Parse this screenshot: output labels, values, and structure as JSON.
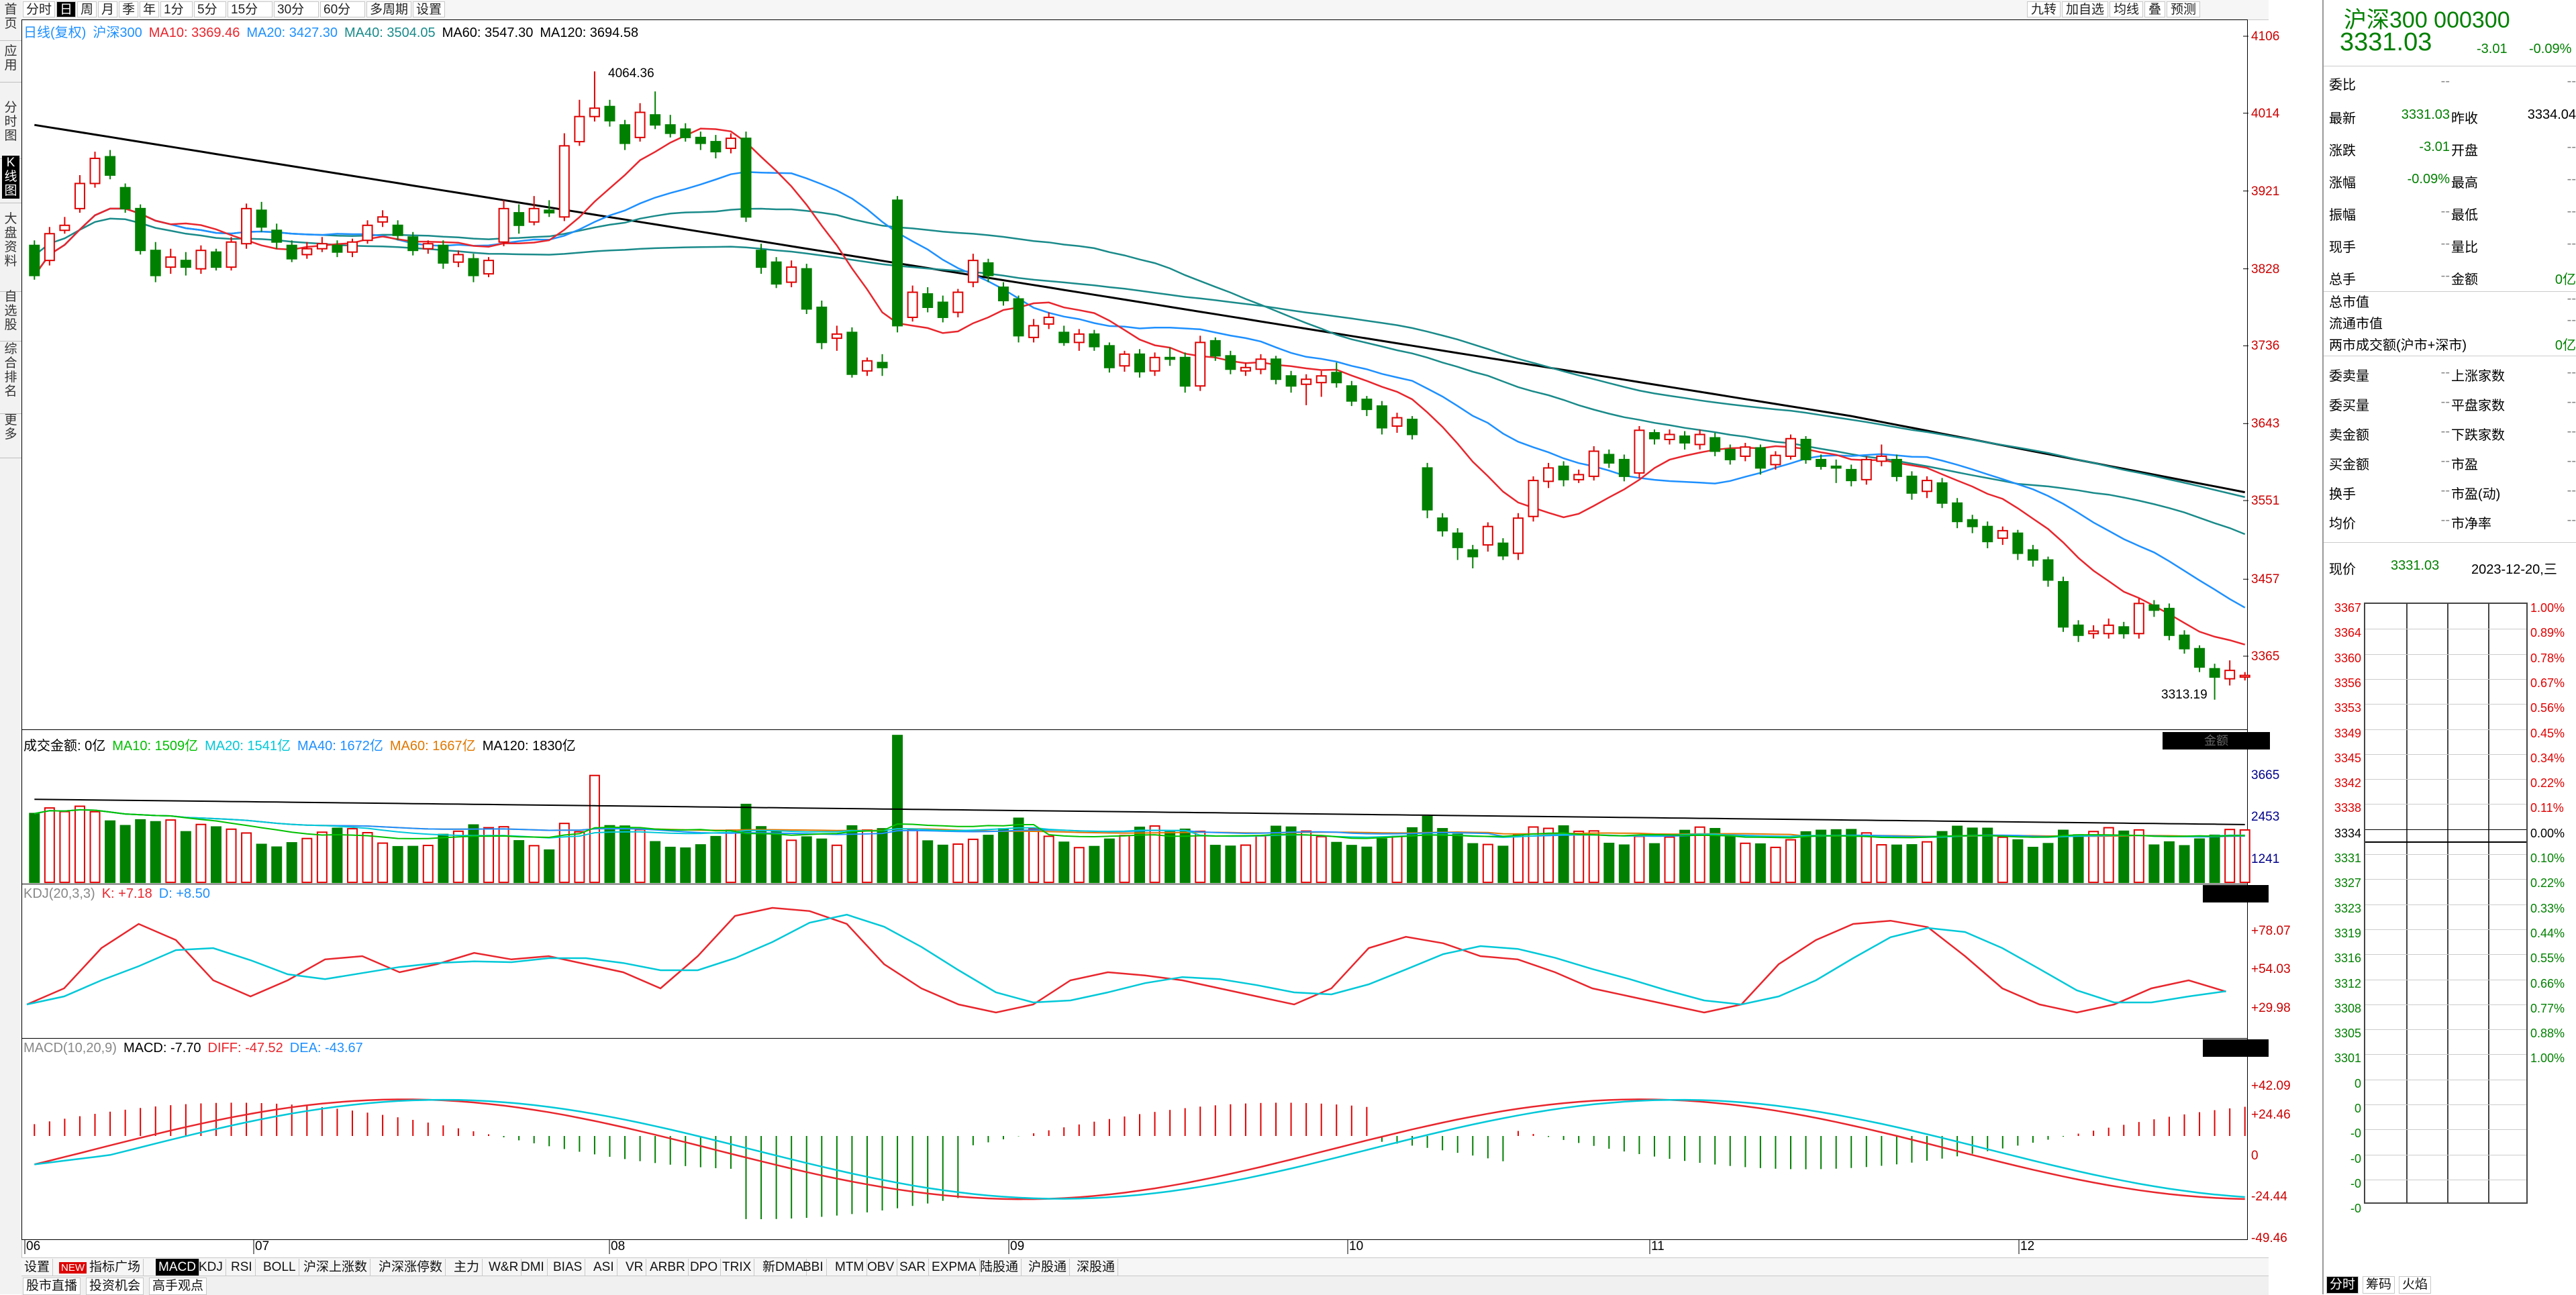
{
  "left_rail": [
    {
      "label": "首页",
      "active": false
    },
    {
      "label": "应用",
      "active": false
    },
    {
      "label": "分时图",
      "active": false
    },
    {
      "label": "K线图",
      "active": true
    },
    {
      "label": "大盘资料",
      "active": false
    },
    {
      "label": "自选股",
      "active": false
    },
    {
      "label": "综合排名",
      "active": false
    },
    {
      "label": "更多",
      "active": false
    }
  ],
  "toolbar": {
    "periods": [
      "分时",
      "日",
      "周",
      "月",
      "季",
      "年",
      "1分",
      "5分",
      "15分",
      "30分",
      "60分",
      "多周期",
      "设置"
    ],
    "active_period": "日",
    "right_buttons": [
      "九转",
      "加自选",
      "均线",
      "叠",
      "预测"
    ]
  },
  "main_legend": {
    "title": "日线(复权)",
    "name": "沪深300",
    "items": [
      {
        "text": "MA10: 3369.46",
        "color": "#e8262d"
      },
      {
        "text": "MA20: 3427.30",
        "color": "#1e90ff"
      },
      {
        "text": "MA40: 3504.05",
        "color": "#1a8a8a"
      },
      {
        "text": "MA60: 3547.30",
        "color": "#000000"
      },
      {
        "text": "MA120: 3694.58",
        "color": "#000000"
      }
    ]
  },
  "price_axis": [
    "4106",
    "4014",
    "3921",
    "3828",
    "3736",
    "3643",
    "3551",
    "3457",
    "3365"
  ],
  "high_label": "4064.36",
  "low_label": "3313.19",
  "volume_legend": {
    "label": "成交金额: 0亿",
    "items": [
      {
        "text": "MA10: 1509亿",
        "color": "#00c000"
      },
      {
        "text": "MA20: 1541亿",
        "color": "#00c8d8"
      },
      {
        "text": "MA40: 1672亿",
        "color": "#1e90ff"
      },
      {
        "text": "MA60: 1667亿",
        "color": "#e07800"
      },
      {
        "text": "MA120: 1830亿",
        "color": "#000000"
      }
    ],
    "tag": "金额",
    "axis": [
      "3665",
      "2453",
      "1241"
    ]
  },
  "kdj_legend": {
    "label": "KDJ(20,3,3)",
    "items": [
      {
        "text": "K: +7.18",
        "color": "#e8262d"
      },
      {
        "text": "D: +8.50",
        "color": "#1e90ff"
      }
    ],
    "axis": [
      "+78.07",
      "+54.03",
      "+29.98"
    ]
  },
  "macd_legend": {
    "label": "MACD(10,20,9)",
    "items": [
      {
        "text": "MACD: -7.70",
        "color": "#000000"
      },
      {
        "text": "DIFF: -47.52",
        "color": "#e8262d"
      },
      {
        "text": "DEA: -43.67",
        "color": "#1e90ff"
      }
    ],
    "axis": [
      "+42.09",
      "+24.46",
      "0",
      "-24.44",
      "-49.46"
    ]
  },
  "months": [
    "06",
    "07",
    "08",
    "09",
    "10",
    "11",
    "12"
  ],
  "bottom_tabs": [
    {
      "label": "设置",
      "new": false
    },
    {
      "label": "指标广场",
      "new": true
    },
    {
      "label": "MACD",
      "new": false,
      "active": true
    },
    {
      "label": "KDJ",
      "new": false
    },
    {
      "label": "RSI",
      "new": false
    },
    {
      "label": "BOLL",
      "new": false
    },
    {
      "label": "沪深上涨数",
      "new": false
    },
    {
      "label": "沪深涨停数",
      "new": false
    },
    {
      "label": "主力",
      "new": false
    },
    {
      "label": "W&R",
      "new": false
    },
    {
      "label": "DMI",
      "new": false
    },
    {
      "label": "BIAS",
      "new": false
    },
    {
      "label": "ASI",
      "new": false
    },
    {
      "label": "VR",
      "new": false
    },
    {
      "label": "ARBR",
      "new": false
    },
    {
      "label": "DPO",
      "new": false
    },
    {
      "label": "TRIX",
      "new": false
    },
    {
      "label": "新DMA",
      "new": false
    },
    {
      "label": "BBI",
      "new": false
    },
    {
      "label": "MTM",
      "new": false
    },
    {
      "label": "OBV",
      "new": false
    },
    {
      "label": "SAR",
      "new": false
    },
    {
      "label": "EXPMA",
      "new": false
    },
    {
      "label": "陆股通",
      "new": false
    },
    {
      "label": "沪股通",
      "new": false
    },
    {
      "label": "深股通",
      "new": false
    }
  ],
  "bottom_tabs2": [
    "股市直播",
    "投资机会",
    "高手观点"
  ],
  "quote": {
    "name": "沪深300 000300",
    "price": "3331.03",
    "change": "-3.01",
    "pct": "-0.09%",
    "rows": [
      {
        "l": "委比",
        "v": "--",
        "l2": "",
        "v2": "--"
      },
      {
        "l": "最新",
        "v": "3331.03",
        "l2": "昨收",
        "v2": "3334.04"
      },
      {
        "l": "涨跌",
        "v": "-3.01",
        "l2": "开盘",
        "v2": "--"
      },
      {
        "l": "涨幅",
        "v": "-0.09%",
        "l2": "最高",
        "v2": "--"
      },
      {
        "l": "振幅",
        "v": "--",
        "l2": "最低",
        "v2": "--"
      },
      {
        "l": "现手",
        "v": "--",
        "l2": "量比",
        "v2": "--"
      },
      {
        "l": "总手",
        "v": "--",
        "l2": "金额",
        "v2": "0亿"
      }
    ],
    "rows_b": [
      {
        "l": "总市值",
        "v": "--"
      },
      {
        "l": "流通市值",
        "v": "--"
      },
      {
        "l": "两市成交额(沪市+深市)",
        "v": "0亿"
      }
    ],
    "rows_c": [
      {
        "l": "委卖量",
        "v": "--",
        "l2": "上涨家数",
        "v2": "--"
      },
      {
        "l": "委买量",
        "v": "--",
        "l2": "平盘家数",
        "v2": "--"
      },
      {
        "l": "卖金额",
        "v": "--",
        "l2": "下跌家数",
        "v2": "--"
      },
      {
        "l": "买金额",
        "v": "--",
        "l2": "市盈",
        "v2": "--"
      },
      {
        "l": "换手",
        "v": "--",
        "l2": "市盈(动)",
        "v2": "--"
      },
      {
        "l": "均价",
        "v": "--",
        "l2": "市净率",
        "v2": "--"
      }
    ],
    "now_label": "现价",
    "now_price": "3331.03",
    "now_date": "2023-12-20,三",
    "mini_left": [
      "3367",
      "3364",
      "3360",
      "3356",
      "3353",
      "3349",
      "3345",
      "3342",
      "3338",
      "3334",
      "3331",
      "3327",
      "3323",
      "3319",
      "3316",
      "3312",
      "3308",
      "3305",
      "3301",
      "0",
      "0",
      "-0",
      "-0",
      "-0",
      "-0"
    ],
    "mini_right": [
      "1.00%",
      "0.89%",
      "0.78%",
      "0.67%",
      "0.56%",
      "0.45%",
      "0.34%",
      "0.22%",
      "0.11%",
      "0.00%",
      "0.10%",
      "0.22%",
      "0.33%",
      "0.44%",
      "0.55%",
      "0.66%",
      "0.77%",
      "0.88%",
      "1.00%"
    ],
    "bottom_btns": [
      "分时",
      "筹码",
      "火焰"
    ]
  },
  "chart_data": {
    "type": "candlestick",
    "ylim": [
      3300,
      4110
    ],
    "candles": [
      [
        3856,
        3820,
        3862,
        3815
      ],
      [
        3838,
        3870,
        3878,
        3832
      ],
      [
        3874,
        3880,
        3890,
        3870
      ],
      [
        3900,
        3930,
        3940,
        3895
      ],
      [
        3930,
        3960,
        3968,
        3925
      ],
      [
        3962,
        3940,
        3970,
        3935
      ],
      [
        3925,
        3900,
        3930,
        3895
      ],
      [
        3900,
        3850,
        3905,
        3845
      ],
      [
        3850,
        3820,
        3860,
        3812
      ],
      [
        3830,
        3842,
        3852,
        3822
      ],
      [
        3838,
        3830,
        3848,
        3820
      ],
      [
        3828,
        3850,
        3856,
        3822
      ],
      [
        3848,
        3830,
        3852,
        3826
      ],
      [
        3830,
        3860,
        3866,
        3826
      ],
      [
        3858,
        3900,
        3906,
        3852
      ],
      [
        3898,
        3878,
        3908,
        3872
      ],
      [
        3874,
        3860,
        3882,
        3852
      ],
      [
        3856,
        3840,
        3862,
        3836
      ],
      [
        3845,
        3852,
        3860,
        3840
      ],
      [
        3852,
        3858,
        3866,
        3848
      ],
      [
        3856,
        3848,
        3862,
        3842
      ],
      [
        3848,
        3860,
        3864,
        3842
      ],
      [
        3862,
        3880,
        3886,
        3858
      ],
      [
        3884,
        3890,
        3898,
        3878
      ],
      [
        3880,
        3868,
        3886,
        3862
      ],
      [
        3866,
        3850,
        3872,
        3844
      ],
      [
        3852,
        3858,
        3862,
        3846
      ],
      [
        3856,
        3835,
        3862,
        3828
      ],
      [
        3836,
        3845,
        3850,
        3830
      ],
      [
        3840,
        3820,
        3846,
        3812
      ],
      [
        3822,
        3838,
        3842,
        3818
      ],
      [
        3860,
        3900,
        3910,
        3855
      ],
      [
        3895,
        3880,
        3905,
        3870
      ],
      [
        3884,
        3900,
        3915,
        3880
      ],
      [
        3898,
        3895,
        3910,
        3890
      ],
      [
        3890,
        3975,
        3990,
        3885
      ],
      [
        3980,
        4010,
        4030,
        3975
      ],
      [
        4010,
        4020,
        4064,
        4004
      ],
      [
        4022,
        4005,
        4030,
        3998
      ],
      [
        4000,
        3978,
        4006,
        3970
      ],
      [
        3985,
        4015,
        4026,
        3980
      ],
      [
        4012,
        4000,
        4040,
        3995
      ],
      [
        4000,
        3990,
        4012,
        3985
      ],
      [
        3995,
        3985,
        4002,
        3980
      ],
      [
        3985,
        3978,
        3992,
        3970
      ],
      [
        3980,
        3968,
        3988,
        3960
      ],
      [
        3972,
        3984,
        3990,
        3966
      ],
      [
        3984,
        3890,
        3992,
        3884
      ],
      [
        3850,
        3830,
        3858,
        3822
      ],
      [
        3836,
        3810,
        3842,
        3805
      ],
      [
        3812,
        3830,
        3838,
        3806
      ],
      [
        3828,
        3780,
        3834,
        3774
      ],
      [
        3782,
        3740,
        3790,
        3732
      ],
      [
        3745,
        3750,
        3760,
        3730
      ],
      [
        3752,
        3702,
        3758,
        3698
      ],
      [
        3706,
        3718,
        3722,
        3700
      ],
      [
        3716,
        3710,
        3726,
        3700
      ],
      [
        3910,
        3760,
        3915,
        3752
      ],
      [
        3770,
        3800,
        3808,
        3765
      ],
      [
        3798,
        3782,
        3806,
        3776
      ],
      [
        3788,
        3770,
        3796,
        3764
      ],
      [
        3776,
        3800,
        3804,
        3770
      ],
      [
        3812,
        3838,
        3846,
        3806
      ],
      [
        3835,
        3820,
        3840,
        3812
      ],
      [
        3806,
        3790,
        3812,
        3784
      ],
      [
        3792,
        3748,
        3796,
        3740
      ],
      [
        3746,
        3760,
        3768,
        3740
      ],
      [
        3762,
        3770,
        3776,
        3756
      ],
      [
        3752,
        3740,
        3760,
        3736
      ],
      [
        3740,
        3750,
        3756,
        3730
      ],
      [
        3750,
        3735,
        3755,
        3730
      ],
      [
        3736,
        3710,
        3740,
        3704
      ],
      [
        3712,
        3726,
        3730,
        3705
      ],
      [
        3726,
        3705,
        3732,
        3698
      ],
      [
        3706,
        3722,
        3728,
        3700
      ],
      [
        3722,
        3720,
        3734,
        3712
      ],
      [
        3722,
        3688,
        3728,
        3680
      ],
      [
        3688,
        3740,
        3748,
        3682
      ],
      [
        3742,
        3724,
        3746,
        3718
      ],
      [
        3724,
        3708,
        3730,
        3702
      ],
      [
        3706,
        3710,
        3716,
        3700
      ],
      [
        3708,
        3720,
        3726,
        3702
      ],
      [
        3720,
        3696,
        3724,
        3690
      ],
      [
        3700,
        3688,
        3706,
        3680
      ],
      [
        3690,
        3696,
        3702,
        3665
      ],
      [
        3692,
        3700,
        3706,
        3675
      ],
      [
        3704,
        3692,
        3716,
        3686
      ],
      [
        3688,
        3670,
        3694,
        3664
      ],
      [
        3672,
        3660,
        3676,
        3652
      ],
      [
        3664,
        3638,
        3670,
        3630
      ],
      [
        3640,
        3650,
        3656,
        3632
      ],
      [
        3648,
        3630,
        3652,
        3624
      ],
      [
        3590,
        3540,
        3596,
        3530
      ],
      [
        3530,
        3515,
        3536,
        3508
      ],
      [
        3512,
        3495,
        3518,
        3480
      ],
      [
        3492,
        3484,
        3498,
        3470
      ],
      [
        3498,
        3520,
        3525,
        3490
      ],
      [
        3500,
        3485,
        3506,
        3480
      ],
      [
        3488,
        3530,
        3536,
        3480
      ],
      [
        3532,
        3575,
        3580,
        3526
      ],
      [
        3574,
        3590,
        3596,
        3566
      ],
      [
        3592,
        3576,
        3598,
        3568
      ],
      [
        3576,
        3582,
        3588,
        3572
      ],
      [
        3580,
        3610,
        3616,
        3575
      ],
      [
        3606,
        3596,
        3612,
        3590
      ],
      [
        3600,
        3580,
        3606,
        3574
      ],
      [
        3584,
        3635,
        3640,
        3578
      ],
      [
        3632,
        3625,
        3636,
        3618
      ],
      [
        3624,
        3630,
        3636,
        3618
      ],
      [
        3628,
        3620,
        3634,
        3612
      ],
      [
        3618,
        3630,
        3636,
        3612
      ],
      [
        3626,
        3610,
        3632,
        3604
      ],
      [
        3612,
        3600,
        3618,
        3594
      ],
      [
        3604,
        3615,
        3620,
        3598
      ],
      [
        3614,
        3590,
        3618,
        3582
      ],
      [
        3594,
        3605,
        3610,
        3588
      ],
      [
        3604,
        3625,
        3630,
        3600
      ],
      [
        3624,
        3600,
        3628,
        3595
      ],
      [
        3600,
        3592,
        3606,
        3588
      ],
      [
        3592,
        3590,
        3600,
        3572
      ],
      [
        3588,
        3575,
        3594,
        3568
      ],
      [
        3576,
        3600,
        3604,
        3570
      ],
      [
        3598,
        3604,
        3618,
        3592
      ],
      [
        3600,
        3580,
        3606,
        3574
      ],
      [
        3580,
        3560,
        3586,
        3552
      ],
      [
        3562,
        3575,
        3580,
        3554
      ],
      [
        3572,
        3548,
        3578,
        3542
      ],
      [
        3548,
        3526,
        3554,
        3518
      ],
      [
        3528,
        3520,
        3534,
        3512
      ],
      [
        3520,
        3502,
        3526,
        3494
      ],
      [
        3506,
        3515,
        3520,
        3498
      ],
      [
        3512,
        3488,
        3516,
        3480
      ],
      [
        3492,
        3480,
        3498,
        3472
      ],
      [
        3480,
        3456,
        3484,
        3448
      ],
      [
        3454,
        3400,
        3460,
        3394
      ],
      [
        3402,
        3390,
        3408,
        3382
      ],
      [
        3392,
        3395,
        3402,
        3386
      ],
      [
        3392,
        3402,
        3410,
        3386
      ],
      [
        3400,
        3392,
        3406,
        3386
      ],
      [
        3392,
        3428,
        3434,
        3386
      ],
      [
        3426,
        3420,
        3432,
        3412
      ],
      [
        3422,
        3390,
        3428,
        3384
      ],
      [
        3390,
        3374,
        3396,
        3368
      ],
      [
        3374,
        3352,
        3378,
        3346
      ],
      [
        3350,
        3340,
        3356,
        3313
      ],
      [
        3338,
        3348,
        3360,
        3330
      ],
      [
        3340,
        3342,
        3346,
        3336
      ]
    ]
  }
}
